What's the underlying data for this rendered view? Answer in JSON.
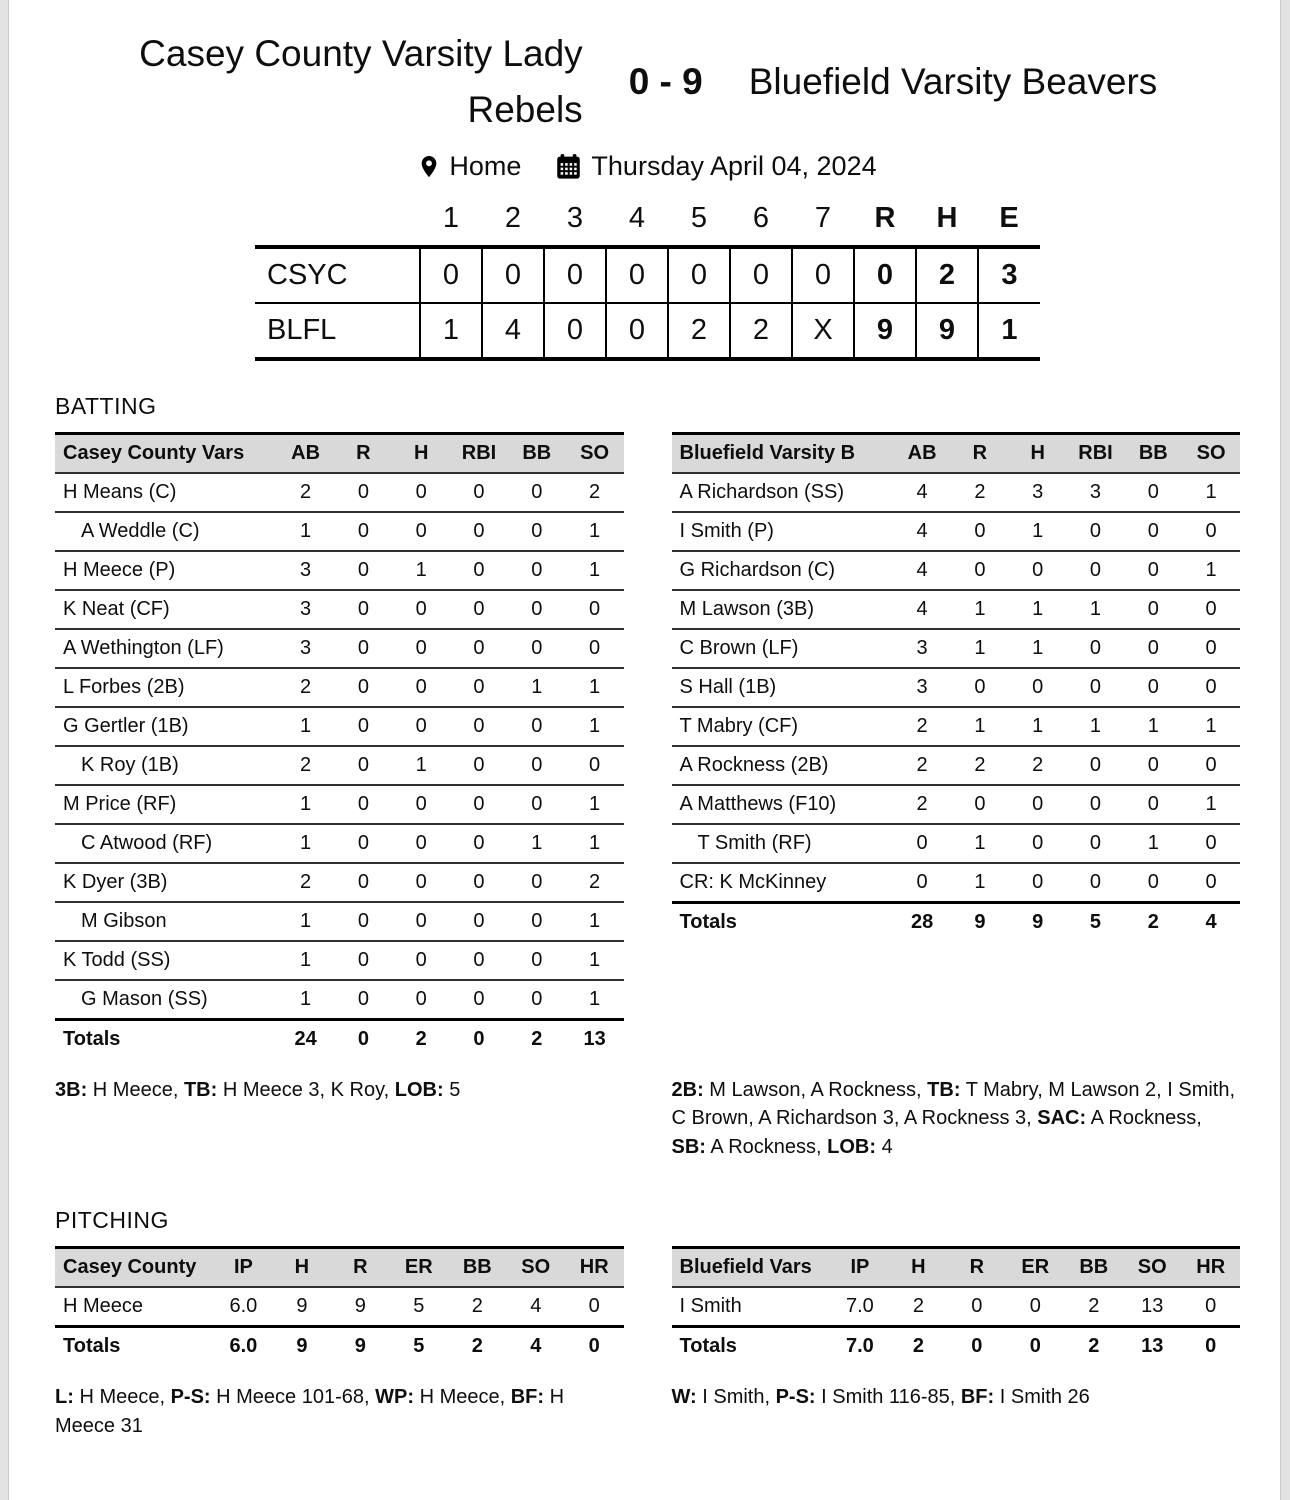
{
  "header": {
    "home_team": "Casey County Varsity Lady Rebels",
    "score": "0 - 9",
    "away_team": "Bluefield Varsity Beavers",
    "venue": "Home",
    "venue_icon": "location-pin",
    "date": "Thursday April 04, 2024",
    "date_icon": "calendar"
  },
  "colors": {
    "table_header_bg": "#d9d9d9",
    "border_strong": "#000000",
    "border_thin": "#303030",
    "text": "#0e0e0e"
  },
  "linescore": {
    "innings": [
      "1",
      "2",
      "3",
      "4",
      "5",
      "6",
      "7"
    ],
    "summary": [
      "R",
      "H",
      "E"
    ],
    "rows": [
      {
        "team": "CSYC",
        "innings": [
          "0",
          "0",
          "0",
          "0",
          "0",
          "0",
          "0"
        ],
        "summary": [
          "0",
          "2",
          "3"
        ]
      },
      {
        "team": "BLFL",
        "innings": [
          "1",
          "4",
          "0",
          "0",
          "2",
          "2",
          "X"
        ],
        "summary": [
          "9",
          "9",
          "1"
        ]
      }
    ]
  },
  "batting": {
    "section_title": "BATTING",
    "home": {
      "team_label": "Casey County Vars",
      "columns": [
        "AB",
        "R",
        "H",
        "RBI",
        "BB",
        "SO"
      ],
      "players": [
        {
          "name": "H Means (C)",
          "sub": false,
          "stats": [
            "2",
            "0",
            "0",
            "0",
            "0",
            "2"
          ]
        },
        {
          "name": "A Weddle (C)",
          "sub": true,
          "stats": [
            "1",
            "0",
            "0",
            "0",
            "0",
            "1"
          ]
        },
        {
          "name": "H Meece (P)",
          "sub": false,
          "stats": [
            "3",
            "0",
            "1",
            "0",
            "0",
            "1"
          ]
        },
        {
          "name": "K Neat (CF)",
          "sub": false,
          "stats": [
            "3",
            "0",
            "0",
            "0",
            "0",
            "0"
          ]
        },
        {
          "name": "A Wethington (LF)",
          "sub": false,
          "stats": [
            "3",
            "0",
            "0",
            "0",
            "0",
            "0"
          ]
        },
        {
          "name": "L Forbes (2B)",
          "sub": false,
          "stats": [
            "2",
            "0",
            "0",
            "0",
            "1",
            "1"
          ]
        },
        {
          "name": "G Gertler (1B)",
          "sub": false,
          "stats": [
            "1",
            "0",
            "0",
            "0",
            "0",
            "1"
          ]
        },
        {
          "name": "K Roy (1B)",
          "sub": true,
          "stats": [
            "2",
            "0",
            "1",
            "0",
            "0",
            "0"
          ]
        },
        {
          "name": "M Price (RF)",
          "sub": false,
          "stats": [
            "1",
            "0",
            "0",
            "0",
            "0",
            "1"
          ]
        },
        {
          "name": "C Atwood (RF)",
          "sub": true,
          "stats": [
            "1",
            "0",
            "0",
            "0",
            "1",
            "1"
          ]
        },
        {
          "name": "K Dyer (3B)",
          "sub": false,
          "stats": [
            "2",
            "0",
            "0",
            "0",
            "0",
            "2"
          ]
        },
        {
          "name": "M Gibson",
          "sub": true,
          "stats": [
            "1",
            "0",
            "0",
            "0",
            "0",
            "1"
          ]
        },
        {
          "name": "K Todd (SS)",
          "sub": false,
          "stats": [
            "1",
            "0",
            "0",
            "0",
            "0",
            "1"
          ]
        },
        {
          "name": "G Mason (SS)",
          "sub": true,
          "stats": [
            "1",
            "0",
            "0",
            "0",
            "0",
            "1"
          ]
        }
      ],
      "totals_label": "Totals",
      "totals": [
        "24",
        "0",
        "2",
        "0",
        "2",
        "13"
      ],
      "note": [
        {
          "b": "3B:"
        },
        {
          "t": " H Meece, "
        },
        {
          "b": "TB:"
        },
        {
          "t": " H Meece 3, K Roy, "
        },
        {
          "b": "LOB:"
        },
        {
          "t": " 5"
        }
      ]
    },
    "away": {
      "team_label": "Bluefield Varsity B",
      "columns": [
        "AB",
        "R",
        "H",
        "RBI",
        "BB",
        "SO"
      ],
      "players": [
        {
          "name": "A Richardson (SS)",
          "sub": false,
          "stats": [
            "4",
            "2",
            "3",
            "3",
            "0",
            "1"
          ]
        },
        {
          "name": "I Smith (P)",
          "sub": false,
          "stats": [
            "4",
            "0",
            "1",
            "0",
            "0",
            "0"
          ]
        },
        {
          "name": "G Richardson (C)",
          "sub": false,
          "stats": [
            "4",
            "0",
            "0",
            "0",
            "0",
            "1"
          ]
        },
        {
          "name": "M Lawson (3B)",
          "sub": false,
          "stats": [
            "4",
            "1",
            "1",
            "1",
            "0",
            "0"
          ]
        },
        {
          "name": "C Brown (LF)",
          "sub": false,
          "stats": [
            "3",
            "1",
            "1",
            "0",
            "0",
            "0"
          ]
        },
        {
          "name": "S Hall (1B)",
          "sub": false,
          "stats": [
            "3",
            "0",
            "0",
            "0",
            "0",
            "0"
          ]
        },
        {
          "name": "T Mabry (CF)",
          "sub": false,
          "stats": [
            "2",
            "1",
            "1",
            "1",
            "1",
            "1"
          ]
        },
        {
          "name": "A Rockness (2B)",
          "sub": false,
          "stats": [
            "2",
            "2",
            "2",
            "0",
            "0",
            "0"
          ]
        },
        {
          "name": "A Matthews (F10)",
          "sub": false,
          "stats": [
            "2",
            "0",
            "0",
            "0",
            "0",
            "1"
          ]
        },
        {
          "name": "T Smith (RF)",
          "sub": true,
          "stats": [
            "0",
            "1",
            "0",
            "0",
            "1",
            "0"
          ]
        },
        {
          "name": "CR: K McKinney",
          "sub": false,
          "stats": [
            "0",
            "1",
            "0",
            "0",
            "0",
            "0"
          ]
        }
      ],
      "totals_label": "Totals",
      "totals": [
        "28",
        "9",
        "9",
        "5",
        "2",
        "4"
      ],
      "note": [
        {
          "b": "2B:"
        },
        {
          "t": " M Lawson, A Rockness, "
        },
        {
          "b": "TB:"
        },
        {
          "t": " T Mabry, M Lawson 2, I Smith, C Brown, A Richardson 3, A Rockness 3, "
        },
        {
          "b": "SAC:"
        },
        {
          "t": " A Rockness, "
        },
        {
          "b": "SB:"
        },
        {
          "t": " A Rockness, "
        },
        {
          "b": "LOB:"
        },
        {
          "t": " 4"
        }
      ]
    }
  },
  "pitching": {
    "section_title": "PITCHING",
    "home": {
      "team_label": "Casey County",
      "columns": [
        "IP",
        "H",
        "R",
        "ER",
        "BB",
        "SO",
        "HR"
      ],
      "players": [
        {
          "name": "H Meece",
          "sub": false,
          "stats": [
            "6.0",
            "9",
            "9",
            "5",
            "2",
            "4",
            "0"
          ]
        }
      ],
      "totals_label": "Totals",
      "totals": [
        "6.0",
        "9",
        "9",
        "5",
        "2",
        "4",
        "0"
      ],
      "note": [
        {
          "b": "L:"
        },
        {
          "t": " H Meece, "
        },
        {
          "b": "P-S:"
        },
        {
          "t": " H Meece 101-68, "
        },
        {
          "b": "WP:"
        },
        {
          "t": " H Meece, "
        },
        {
          "b": "BF:"
        },
        {
          "t": " H Meece 31"
        }
      ]
    },
    "away": {
      "team_label": "Bluefield Vars",
      "columns": [
        "IP",
        "H",
        "R",
        "ER",
        "BB",
        "SO",
        "HR"
      ],
      "players": [
        {
          "name": "I Smith",
          "sub": false,
          "stats": [
            "7.0",
            "2",
            "0",
            "0",
            "2",
            "13",
            "0"
          ]
        }
      ],
      "totals_label": "Totals",
      "totals": [
        "7.0",
        "2",
        "0",
        "0",
        "2",
        "13",
        "0"
      ],
      "note": [
        {
          "b": "W:"
        },
        {
          "t": " I Smith, "
        },
        {
          "b": "P-S:"
        },
        {
          "t": " I Smith 116-85, "
        },
        {
          "b": "BF:"
        },
        {
          "t": " I Smith 26"
        }
      ]
    }
  }
}
